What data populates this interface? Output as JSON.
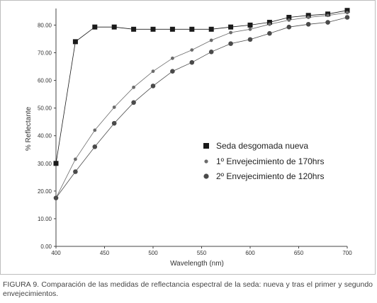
{
  "chart_data": {
    "type": "line",
    "title": "",
    "xlabel": "Wavelength (nm)",
    "ylabel": "% Reflectante",
    "xlim": [
      400,
      700
    ],
    "ylim": [
      0,
      86
    ],
    "xticks": [
      "400",
      "450",
      "500",
      "550",
      "600",
      "650",
      "700"
    ],
    "xtick_values": [
      400,
      450,
      500,
      550,
      600,
      650,
      700
    ],
    "yticks": [
      "0.00",
      "10.00",
      "20.00",
      "30.00",
      "40.00",
      "50.00",
      "60.00",
      "70.00",
      "80.00"
    ],
    "ytick_values": [
      0,
      10,
      20,
      30,
      40,
      50,
      60,
      70,
      80
    ],
    "grid": false,
    "legend_position": "center-right",
    "series": [
      {
        "name": "Seda desgomada nueva",
        "marker": "square",
        "color": "#1a1a1a",
        "x": [
          400,
          420,
          440,
          460,
          480,
          500,
          520,
          540,
          560,
          580,
          600,
          620,
          640,
          660,
          680,
          700
        ],
        "y": [
          30.0,
          74.0,
          79.3,
          79.3,
          78.5,
          78.5,
          78.5,
          78.5,
          78.5,
          79.3,
          80.0,
          81.0,
          82.8,
          83.5,
          84.0,
          85.3
        ]
      },
      {
        "name": "1º Envejecimiento de 170hrs",
        "marker": "small-circle",
        "color": "#6b6b6b",
        "x": [
          400,
          420,
          440,
          460,
          480,
          500,
          520,
          540,
          560,
          580,
          600,
          620,
          640,
          660,
          680,
          700
        ],
        "y": [
          17.5,
          31.5,
          42.0,
          50.3,
          57.5,
          63.3,
          68.0,
          71.0,
          74.5,
          77.3,
          78.5,
          80.3,
          81.8,
          82.8,
          83.5,
          84.5
        ]
      },
      {
        "name": "2º Envejecimiento de 120hrs",
        "marker": "circle",
        "color": "#4a4a4a",
        "x": [
          400,
          420,
          440,
          460,
          480,
          500,
          520,
          540,
          560,
          580,
          600,
          620,
          640,
          660,
          680,
          700
        ],
        "y": [
          17.5,
          27.0,
          36.0,
          44.5,
          52.0,
          58.0,
          63.3,
          66.5,
          70.3,
          73.3,
          74.8,
          77.0,
          79.3,
          80.3,
          81.0,
          82.8
        ]
      }
    ]
  },
  "caption": "FIGURA 9. Comparación de las medidas de reflectancia espectral de la seda: nueva y tras el primer y segundo envejecimientos."
}
